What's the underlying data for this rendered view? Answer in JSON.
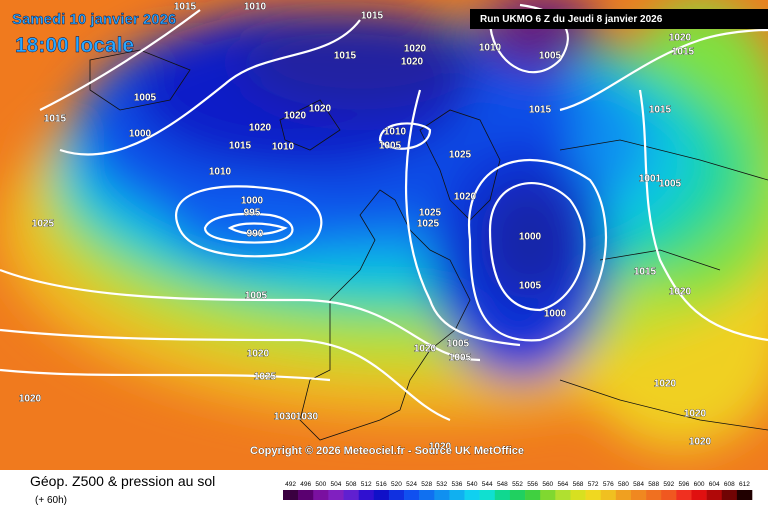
{
  "header": {
    "date": "Samedi 10 janvier 2026",
    "time": "18:00 locale",
    "run": "Run UKMO 6 Z du Jeudi 8 janvier 2026"
  },
  "copyright": "Copyright © 2026 Meteociel.fr - Source UK MetOffice",
  "footer": {
    "title": "Géop. Z500 & pression au sol",
    "lead": "(+ 60h)"
  },
  "legend": {
    "labels": [
      492,
      496,
      500,
      504,
      508,
      512,
      516,
      520,
      524,
      528,
      532,
      536,
      540,
      544,
      548,
      552,
      556,
      560,
      564,
      568,
      572,
      576,
      580,
      584,
      588,
      592,
      596,
      600,
      604,
      608,
      612
    ]
  },
  "isobars": {
    "labels": [
      "1015",
      "1010",
      "1015",
      "1020",
      "1015",
      "1020",
      "1010",
      "1005",
      "1020",
      "1015",
      "1015",
      "1005",
      "1000",
      "1020",
      "1020",
      "1020",
      "1015",
      "1010",
      "1010",
      "1005",
      "1025",
      "1015",
      "1015",
      "1010",
      "1000",
      "995",
      "990",
      "1025",
      "1020",
      "1025",
      "1025",
      "1000",
      "1005",
      "1000",
      "1001",
      "1005",
      "1015",
      "1020",
      "1005",
      "1020",
      "1025",
      "1020",
      "1005",
      "1005",
      "1020",
      "1030",
      "1030",
      "1020",
      "1020",
      "1020",
      "1020"
    ]
  }
}
